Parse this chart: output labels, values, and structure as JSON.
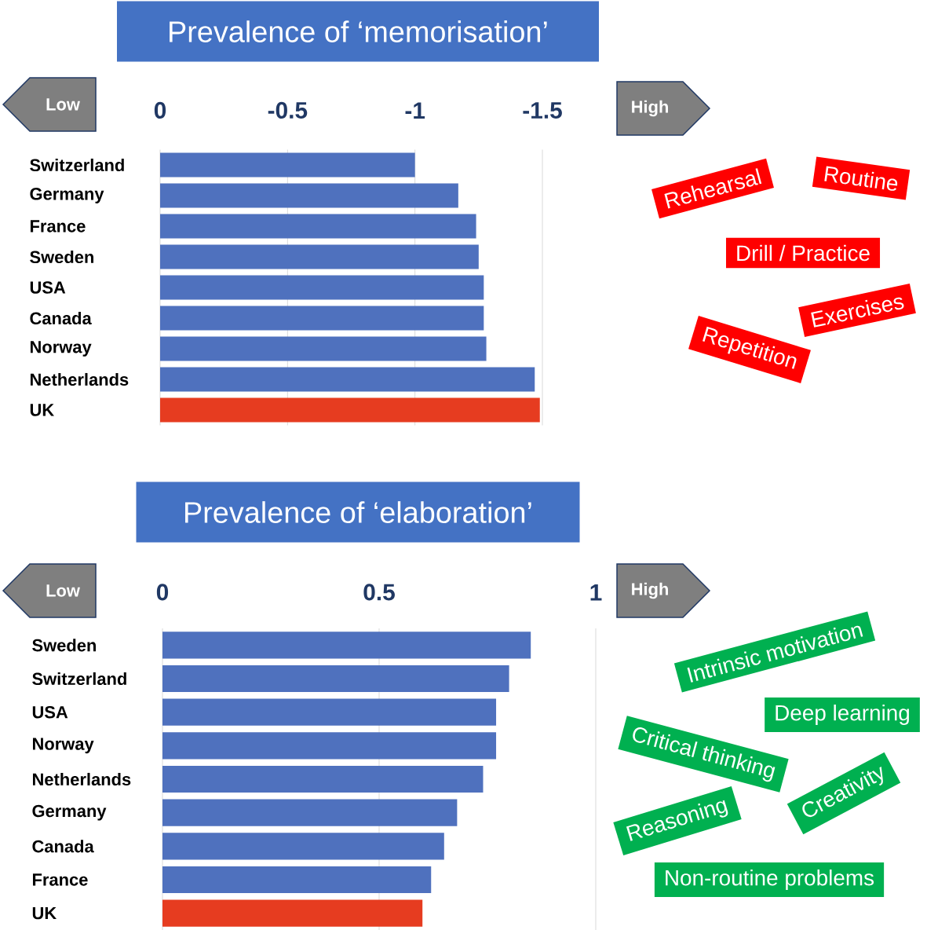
{
  "chart_data": [
    {
      "type": "bar",
      "orientation": "horizontal",
      "title": "Prevalence of ‘memorisation’",
      "categories": [
        "Switzerland",
        "Germany",
        "France",
        "Sweden",
        "USA",
        "Canada",
        "Norway",
        "Netherlands",
        "UK"
      ],
      "values": [
        -1.0,
        -1.17,
        -1.24,
        -1.25,
        -1.27,
        -1.27,
        -1.28,
        -1.47,
        -1.49
      ],
      "colors": [
        "#4f71be",
        "#4f71be",
        "#4f71be",
        "#4f71be",
        "#4f71be",
        "#4f71be",
        "#4f71be",
        "#4f71be",
        "#e63c20"
      ],
      "xlim": [
        0,
        -1.5
      ],
      "xticks": [
        0,
        -0.5,
        -1,
        -1.5
      ],
      "grid": "x",
      "annotations": [
        "Low",
        "High",
        "Rehearsal",
        "Routine",
        "Drill / Practice",
        "Exercises",
        "Repetition"
      ]
    },
    {
      "type": "bar",
      "orientation": "horizontal",
      "title": "Prevalence of ‘elaboration’",
      "categories": [
        "Sweden",
        "Switzerland",
        "USA",
        "Norway",
        "Netherlands",
        "Germany",
        "Canada",
        "France",
        "UK"
      ],
      "values": [
        0.85,
        0.8,
        0.77,
        0.77,
        0.74,
        0.68,
        0.65,
        0.62,
        0.6
      ],
      "colors": [
        "#4f71be",
        "#4f71be",
        "#4f71be",
        "#4f71be",
        "#4f71be",
        "#4f71be",
        "#4f71be",
        "#4f71be",
        "#e63c20"
      ],
      "xlim": [
        0,
        1
      ],
      "xticks": [
        0,
        0.5,
        1
      ],
      "grid": "x",
      "annotations": [
        "Low",
        "High",
        "Intrinsic motivation",
        "Deep learning",
        "Critical thinking",
        "Creativity",
        "Reasoning",
        "Non-routine problems"
      ]
    }
  ]
}
